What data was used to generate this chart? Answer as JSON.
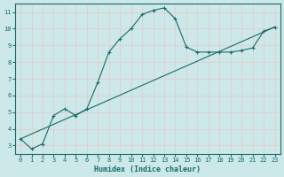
{
  "xlabel": "Humidex (Indice chaleur)",
  "xlim": [
    -0.5,
    23.5
  ],
  "ylim": [
    2.5,
    11.5
  ],
  "xticks": [
    0,
    1,
    2,
    3,
    4,
    5,
    6,
    7,
    8,
    9,
    10,
    11,
    12,
    13,
    14,
    15,
    16,
    17,
    18,
    19,
    20,
    21,
    22,
    23
  ],
  "yticks": [
    3,
    4,
    5,
    6,
    7,
    8,
    9,
    10,
    11
  ],
  "bg_color": "#cce8e8",
  "line_color": "#1a6b6b",
  "grid_color": "#e8c8c8",
  "curve1_x": [
    0,
    1,
    2,
    3,
    4,
    5,
    6,
    7,
    8,
    9,
    10,
    11,
    12,
    13,
    14,
    15,
    16,
    17,
    18,
    19,
    20,
    21,
    22,
    23
  ],
  "curve1_y": [
    3.4,
    2.8,
    3.1,
    4.8,
    5.2,
    4.8,
    5.2,
    6.8,
    8.6,
    9.4,
    10.0,
    10.85,
    11.1,
    11.25,
    10.6,
    8.9,
    8.6,
    8.6,
    8.6,
    8.6,
    8.7,
    8.85,
    9.85,
    10.1
  ],
  "curve2_x": [
    0,
    23
  ],
  "curve2_y": [
    3.4,
    10.1
  ]
}
